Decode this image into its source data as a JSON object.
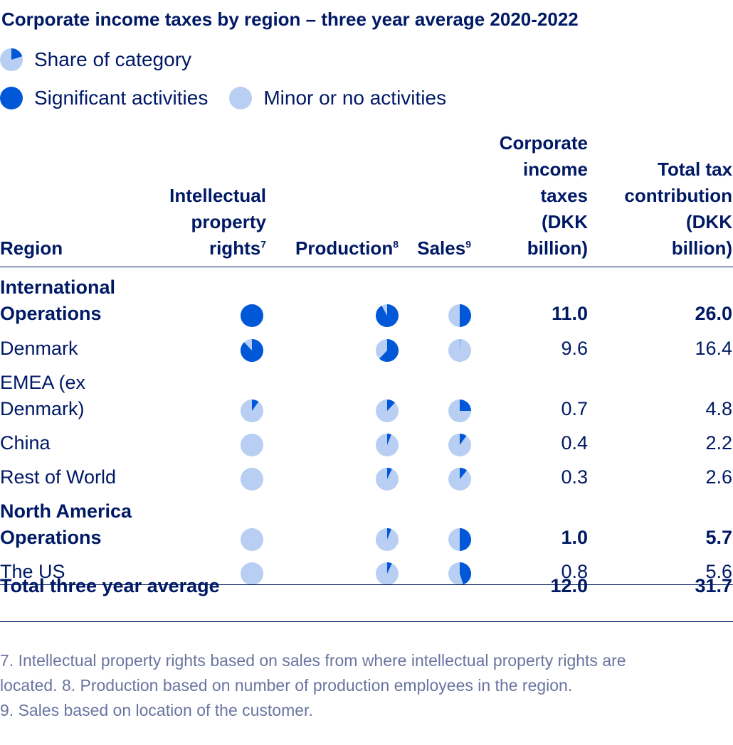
{
  "colors": {
    "significant": "#0057d8",
    "minor": "#b8cef2",
    "text": "#001965",
    "footnote": "#6a74a0"
  },
  "title": "Corporate income taxes by region – three year average 2020-2022",
  "legend": {
    "share_label": "Share of category",
    "significant_label": "Significant activities",
    "minor_label": "Minor or no activities"
  },
  "columns": {
    "region": "Region",
    "ip": [
      "Intellectual",
      "property",
      "rights"
    ],
    "ip_note": "7",
    "production": "Production",
    "production_note": "8",
    "sales": "Sales",
    "sales_note": "9",
    "cit": [
      "Corporate",
      "income",
      "taxes",
      "(DKK",
      "billion)"
    ],
    "ttc": [
      "Total tax",
      "contribution",
      "(DKK",
      "billion)"
    ]
  },
  "chart_data": {
    "type": "table",
    "title": "Corporate income taxes by region – three year average 2020-2022",
    "legend": [
      "Share of category",
      "Significant activities",
      "Minor or no activities"
    ],
    "columns": [
      "Region",
      "Intellectual property rights",
      "Production",
      "Sales",
      "Corporate income taxes (DKK billion)",
      "Total tax contribution (DKK billion)"
    ],
    "rows": [
      {
        "region": [
          "International",
          "Operations"
        ],
        "bold": true,
        "ip": 1.0,
        "production": 0.92,
        "sales": 0.5,
        "cit": "11.0",
        "ttc": "26.0"
      },
      {
        "region": [
          "Denmark"
        ],
        "bold": false,
        "ip": 0.88,
        "production": 0.62,
        "sales": 0.005,
        "cit": "9.6",
        "ttc": "16.4"
      },
      {
        "region": [
          "EMEA (ex",
          "Denmark)"
        ],
        "bold": false,
        "ip": 0.1,
        "production": 0.12,
        "sales": 0.25,
        "cit": "0.7",
        "ttc": "4.8"
      },
      {
        "region": [
          "China"
        ],
        "bold": false,
        "ip": 0.0,
        "production": 0.06,
        "sales": 0.1,
        "cit": "0.4",
        "ttc": "2.2"
      },
      {
        "region": [
          "Rest of World"
        ],
        "bold": false,
        "ip": 0.0,
        "production": 0.07,
        "sales": 0.11,
        "cit": "0.3",
        "ttc": "2.6"
      },
      {
        "region": [
          "North America",
          "Operations"
        ],
        "bold": true,
        "ip": 0.0,
        "production": 0.06,
        "sales": 0.5,
        "cit": "1.0",
        "ttc": "5.7"
      },
      {
        "region": [
          "The US"
        ],
        "bold": false,
        "ip": 0.0,
        "production": 0.07,
        "sales": 0.45,
        "cit": "0.8",
        "ttc": "5.6"
      }
    ],
    "total": {
      "label": "Total three year average",
      "cit": "12.0",
      "ttc": "31.7"
    }
  },
  "footnotes": [
    "7. Intellectual property rights based on sales from where intellectual property rights are",
    "located.  8. Production based on number of production employees in the region.",
    "9. Sales based on location of the customer."
  ]
}
